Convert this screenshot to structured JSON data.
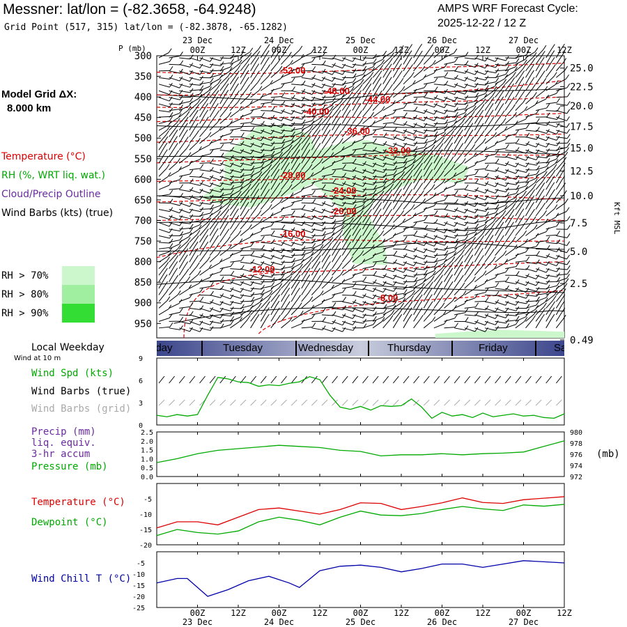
{
  "header": {
    "title": "Messner:  lat/lon = (-82.3658, -64.9248)",
    "subtitle": "Grid Point (517, 315) lat/lon = (-82.3878, -65.1282)",
    "cycle_line1": "AMPS WRF Forecast Cycle:",
    "cycle_line2": "2025-12-22 / 12  Z"
  },
  "model_grid": {
    "line1": "Model Grid ΔX:",
    "line2": "8.000 km"
  },
  "legend": {
    "temperature": "Temperature (°C)",
    "rh": "RH (%, WRT liq. wat.)",
    "cloud": "Cloud/Precip Outline",
    "wind": "Wind Barbs (kts) (true)",
    "rh70": "RH > 70%",
    "rh80": "RH > 80%",
    "rh90": "RH > 90%",
    "local_weekday": "Local Weekday",
    "wind10m": "Wind at 10 m",
    "wind_spd": "Wind Spd (kts)",
    "wind_barbs_true": "Wind Barbs (true)",
    "wind_barbs_grid": "Wind Barbs (grid)",
    "precip1": "Precip (mm)",
    "precip2": "liq. equiv.",
    "precip3": "3-hr accum",
    "pressure": "Pressure (mb)",
    "temp2": "Temperature (°C)",
    "dewpoint": "Dewpoint (°C)",
    "windchill": "Wind Chill T (°C)"
  },
  "colors": {
    "temperature": "#dd0000",
    "rh": "#00aa00",
    "cloud": "#6a2aa0",
    "gray": "#aaaaaa",
    "rh70": "#ccf7cc",
    "rh80": "#a0eea0",
    "rh90": "#33dd33",
    "windchill": "#0000aa"
  },
  "chart_data": [
    {
      "type": "cross-section",
      "panel": "upper",
      "top_ticks": [
        {
          "hour": 12,
          "label": "00Z",
          "date": "23 Dec"
        },
        {
          "hour": 24,
          "label": "12Z"
        },
        {
          "hour": 36,
          "label": "00Z",
          "date": "24 Dec"
        },
        {
          "hour": 48,
          "label": "12Z"
        },
        {
          "hour": 60,
          "label": "00Z",
          "date": "25 Dec"
        },
        {
          "hour": 72,
          "label": "12Z"
        },
        {
          "hour": 84,
          "label": "00Z",
          "date": "26 Dec"
        },
        {
          "hour": 96,
          "label": "12Z"
        },
        {
          "hour": 108,
          "label": "00Z",
          "date": "27 Dec"
        },
        {
          "hour": 120,
          "label": "12Z"
        }
      ],
      "x_range_hours": [
        0,
        120
      ],
      "pressure_title": "P (mb)",
      "pressure_levels": [
        300,
        350,
        400,
        450,
        500,
        550,
        600,
        650,
        700,
        750,
        800,
        850,
        900,
        950
      ],
      "kft_title": "Kft MSL",
      "kft_ticks": [
        {
          "label": "25.0",
          "p": 330
        },
        {
          "label": "22.5",
          "p": 375
        },
        {
          "label": "20.0",
          "p": 422
        },
        {
          "label": "17.5",
          "p": 472
        },
        {
          "label": "15.0",
          "p": 524
        },
        {
          "label": "12.5",
          "p": 580
        },
        {
          "label": "10.0",
          "p": 640
        },
        {
          "label": "7.5",
          "p": 706
        },
        {
          "label": "5.0",
          "p": 775
        },
        {
          "label": "2.5",
          "p": 853
        },
        {
          "label": "0.49",
          "p": 990
        }
      ],
      "temperature_labels": [
        {
          "text": "-52.00",
          "hour": 40,
          "p": 343
        },
        {
          "text": "-48.00",
          "hour": 53,
          "p": 393
        },
        {
          "text": "-44.00",
          "hour": 65,
          "p": 413
        },
        {
          "text": "-40.00",
          "hour": 47,
          "p": 443
        },
        {
          "text": "-36.00",
          "hour": 59,
          "p": 490
        },
        {
          "text": "-32.00",
          "hour": 71,
          "p": 538
        },
        {
          "text": "-28.00",
          "hour": 40,
          "p": 598
        },
        {
          "text": "-24.00",
          "hour": 55,
          "p": 635
        },
        {
          "text": "-20.00",
          "hour": 55,
          "p": 685
        },
        {
          "text": "-16.00",
          "hour": 40,
          "p": 740
        },
        {
          "text": "-12.00",
          "hour": 31,
          "p": 826
        },
        {
          "text": "-8.00",
          "hour": 68,
          "p": 895
        }
      ]
    },
    {
      "type": "line",
      "panel": "wind",
      "yticks": [
        0,
        3,
        6,
        9
      ],
      "ylim": [
        0,
        9
      ],
      "x_hours": [
        0,
        3,
        6,
        9,
        12,
        15,
        18,
        21,
        24,
        27,
        30,
        33,
        36,
        39,
        42,
        45,
        48,
        51,
        54,
        57,
        60,
        63,
        66,
        69,
        72,
        75,
        78,
        81,
        84,
        87,
        90,
        93,
        96,
        99,
        102,
        105,
        108,
        111,
        114,
        117,
        120
      ],
      "wind_speed": [
        1.3,
        1.1,
        1.4,
        1.2,
        1.4,
        4,
        6.4,
        6.2,
        5.8,
        5.7,
        5.2,
        5.4,
        5.3,
        5.6,
        5.8,
        6.5,
        6.1,
        4,
        2.4,
        2.1,
        2.5,
        2,
        2.6,
        2.5,
        2.6,
        3.5,
        2.4,
        0.9,
        1.7,
        1.2,
        1.4,
        1.0,
        1.6,
        1.1,
        1.3,
        1.5,
        1.2,
        1.3,
        1.0,
        0.9,
        1.5
      ]
    },
    {
      "type": "line",
      "panel": "precip-pressure",
      "precip_ticks": [
        "2.5",
        "2.0",
        "1.5",
        "1.0",
        "0.5",
        "0.0"
      ],
      "pressure_ticks": [
        "980",
        "978",
        "976",
        "974",
        "972"
      ],
      "precip_ylim": [
        0,
        2.5
      ],
      "pressure_ylim": [
        972,
        980
      ],
      "pressure_unit": "(mb)",
      "x_hours": [
        0,
        6,
        12,
        18,
        24,
        30,
        36,
        42,
        48,
        54,
        60,
        66,
        72,
        78,
        84,
        90,
        96,
        102,
        108,
        114,
        120
      ],
      "pressure": [
        974.5,
        975.2,
        976.1,
        976.7,
        977.0,
        977.3,
        977.6,
        977.4,
        977.2,
        976.7,
        976.5,
        975.7,
        975.9,
        975.9,
        976.1,
        975.9,
        976.1,
        976.2,
        976.4,
        977.4,
        978.4
      ]
    },
    {
      "type": "line",
      "panel": "temperature",
      "yticks": [
        "-5",
        "-10",
        "-15",
        "-20"
      ],
      "ylim": [
        -20,
        0
      ],
      "x_hours": [
        0,
        6,
        12,
        18,
        24,
        30,
        36,
        42,
        48,
        54,
        60,
        66,
        72,
        78,
        84,
        90,
        96,
        102,
        108,
        114,
        120
      ],
      "temperature": [
        -14.5,
        -12.5,
        -12.5,
        -13.5,
        -11,
        -8.5,
        -8,
        -9,
        -10,
        -8.5,
        -6.3,
        -6.5,
        -8.5,
        -7.5,
        -6.3,
        -4.7,
        -6.2,
        -6.5,
        -5.3,
        -4.8,
        -4.3
      ],
      "dewpoint": [
        -17,
        -15,
        -16,
        -16.5,
        -15.5,
        -12.5,
        -11,
        -12,
        -13.5,
        -11,
        -9,
        -10.3,
        -10.5,
        -9.8,
        -8.5,
        -7.5,
        -8.3,
        -8.8,
        -7,
        -7.4,
        -6.8
      ]
    },
    {
      "type": "line",
      "panel": "windchill",
      "yticks": [
        "-5",
        "-10",
        "-15",
        "-20",
        "-25"
      ],
      "ylim": [
        -25,
        0
      ],
      "x_hours": [
        0,
        6,
        9,
        15,
        21,
        27,
        33,
        39,
        42,
        48,
        54,
        60,
        66,
        72,
        78,
        84,
        90,
        96,
        102,
        108,
        114,
        120
      ],
      "windchill": [
        -14,
        -12,
        -12,
        -20,
        -17,
        -13,
        -11,
        -14,
        -16,
        -8.5,
        -6.5,
        -6,
        -7,
        -9,
        -7.5,
        -5.5,
        -5.5,
        -7,
        -5.5,
        -4,
        -4.5,
        -5
      ]
    }
  ],
  "weekdays": [
    "nday",
    "Tuesday",
    "Wednesday",
    "Thursday",
    "Friday",
    "Sa"
  ],
  "bottom_ticks": [
    {
      "hour": 12,
      "label": "00Z",
      "date": "23 Dec"
    },
    {
      "hour": 24,
      "label": "12Z"
    },
    {
      "hour": 36,
      "label": "00Z",
      "date": "24 Dec"
    },
    {
      "hour": 48,
      "label": "12Z"
    },
    {
      "hour": 60,
      "label": "00Z",
      "date": "25 Dec"
    },
    {
      "hour": 72,
      "label": "12Z"
    },
    {
      "hour": 84,
      "label": "00Z",
      "date": "26 Dec"
    },
    {
      "hour": 96,
      "label": "12Z"
    },
    {
      "hour": 108,
      "label": "00Z",
      "date": "27 Dec"
    },
    {
      "hour": 120,
      "label": "12Z"
    }
  ]
}
